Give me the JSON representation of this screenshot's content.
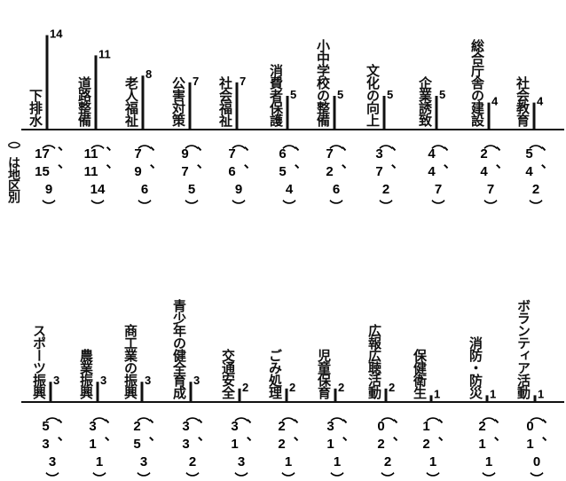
{
  "chart_data": {
    "type": "bar",
    "note_label": "（）は地区別",
    "rows": [
      {
        "items": [
          {
            "label": "下排水",
            "value": 14,
            "districts": [
              17,
              15,
              9
            ]
          },
          {
            "label": "道路整備",
            "value": 11,
            "districts": [
              11,
              11,
              14
            ]
          },
          {
            "label": "老人福祉",
            "value": 8,
            "districts": [
              7,
              9,
              6
            ]
          },
          {
            "label": "公害対策",
            "value": 7,
            "districts": [
              9,
              7,
              5
            ]
          },
          {
            "label": "社会福祉",
            "value": 7,
            "districts": [
              7,
              6,
              9
            ]
          },
          {
            "label": "消費者保護",
            "value": 5,
            "districts": [
              6,
              5,
              4
            ]
          },
          {
            "label": "小中学校の整備",
            "value": 5,
            "districts": [
              7,
              2,
              6
            ]
          },
          {
            "label": "文化の向上",
            "value": 5,
            "districts": [
              3,
              7,
              2
            ]
          },
          {
            "label": "企業誘致",
            "value": 5,
            "districts": [
              4,
              4,
              7
            ]
          },
          {
            "label": "総合庁舎の建設",
            "value": 4,
            "districts": [
              2,
              4,
              7
            ]
          },
          {
            "label": "社会教育",
            "value": 4,
            "districts": [
              5,
              4,
              2
            ]
          }
        ]
      },
      {
        "items": [
          {
            "label": "スポーツ振興",
            "value": 3,
            "districts": [
              5,
              3,
              3
            ]
          },
          {
            "label": "農業振興",
            "value": 3,
            "districts": [
              3,
              1,
              1
            ]
          },
          {
            "label": "商工業の振興",
            "value": 3,
            "districts": [
              2,
              5,
              3
            ]
          },
          {
            "label": "青少年の健全育成",
            "value": 3,
            "districts": [
              3,
              3,
              2
            ]
          },
          {
            "label": "交通安全",
            "value": 2,
            "districts": [
              3,
              1,
              3
            ]
          },
          {
            "label": "ごみ処理",
            "value": 2,
            "districts": [
              2,
              2,
              1
            ]
          },
          {
            "label": "児童保育",
            "value": 2,
            "districts": [
              3,
              1,
              1
            ]
          },
          {
            "label": "広報広聴活動",
            "value": 2,
            "districts": [
              0,
              2,
              2
            ]
          },
          {
            "label": "保健衛生",
            "value": 1,
            "districts": [
              1,
              2,
              1
            ]
          },
          {
            "label": "消防・防災",
            "value": 1,
            "districts": [
              2,
              1,
              1
            ]
          },
          {
            "label": "ボランティア活動",
            "value": 1,
            "districts": [
              0,
              1,
              0
            ]
          }
        ]
      }
    ]
  }
}
